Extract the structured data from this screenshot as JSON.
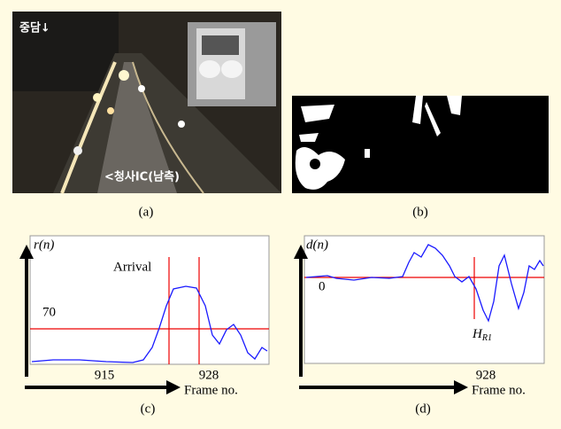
{
  "figure": {
    "panel_a": {
      "caption": "(a)",
      "overlay_top": "중담↓",
      "overlay_bottom": "<청사IC(남측)"
    },
    "panel_b": {
      "caption": "(b)"
    },
    "panel_c": {
      "caption": "(c)",
      "y_label": "r(n)",
      "annotation": "Arrival",
      "threshold_label": "70",
      "x_tick_1": "915",
      "x_tick_2": "928",
      "x_label": "Frame no."
    },
    "panel_d": {
      "caption": "(d)",
      "y_label": "d(n)",
      "zero_label": "0",
      "h_label": {
        "main": "H",
        "sub": "R1"
      },
      "x_tick": "928",
      "x_label": "Frame no."
    }
  }
}
